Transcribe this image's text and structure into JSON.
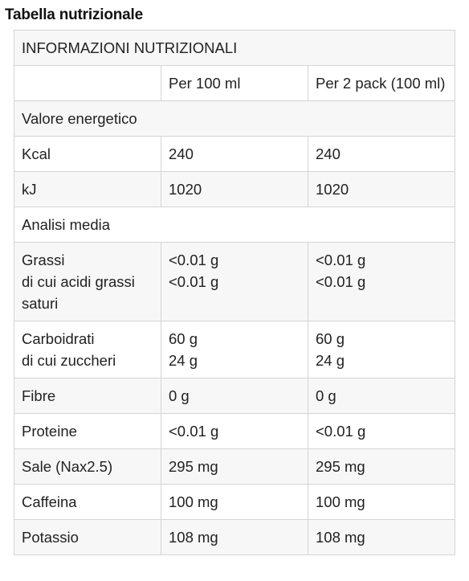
{
  "title": "Tabella nutrizionale",
  "table": {
    "header": "INFORMAZIONI NUTRIZIONALI",
    "columns": [
      "",
      "Per 100 ml",
      "Per 2 pack (100 ml)"
    ],
    "section_energy": "Valore energetico",
    "kcal": {
      "label": "Kcal",
      "per100": "240",
      "pack": "240"
    },
    "kj": {
      "label": "kJ",
      "per100": "1020",
      "pack": "1020"
    },
    "section_analysis": "Analisi media",
    "fat": {
      "label": "Grassi",
      "sub_label": "di cui acidi grassi saturi",
      "per100": "<0.01 g",
      "per100_sub": "<0.01 g",
      "pack": "<0.01 g",
      "pack_sub": "<0.01 g"
    },
    "carbs": {
      "label": "Carboidrati",
      "sub_label": "di cui zuccheri",
      "per100": "60 g",
      "per100_sub": "24 g",
      "pack": "60 g",
      "pack_sub": "24 g"
    },
    "fibre": {
      "label": "Fibre",
      "per100": "0 g",
      "pack": "0 g"
    },
    "protein": {
      "label": "Proteine",
      "per100": "<0.01 g",
      "pack": "<0.01 g"
    },
    "salt": {
      "label": "Sale (Nax2.5)",
      "per100": "295 mg",
      "pack": "295 mg"
    },
    "caffeine": {
      "label": "Caffeina",
      "per100": "100 mg",
      "pack": "100 mg"
    },
    "potassium": {
      "label": "Potassio",
      "per100": "108 mg",
      "pack": "108 mg"
    }
  }
}
